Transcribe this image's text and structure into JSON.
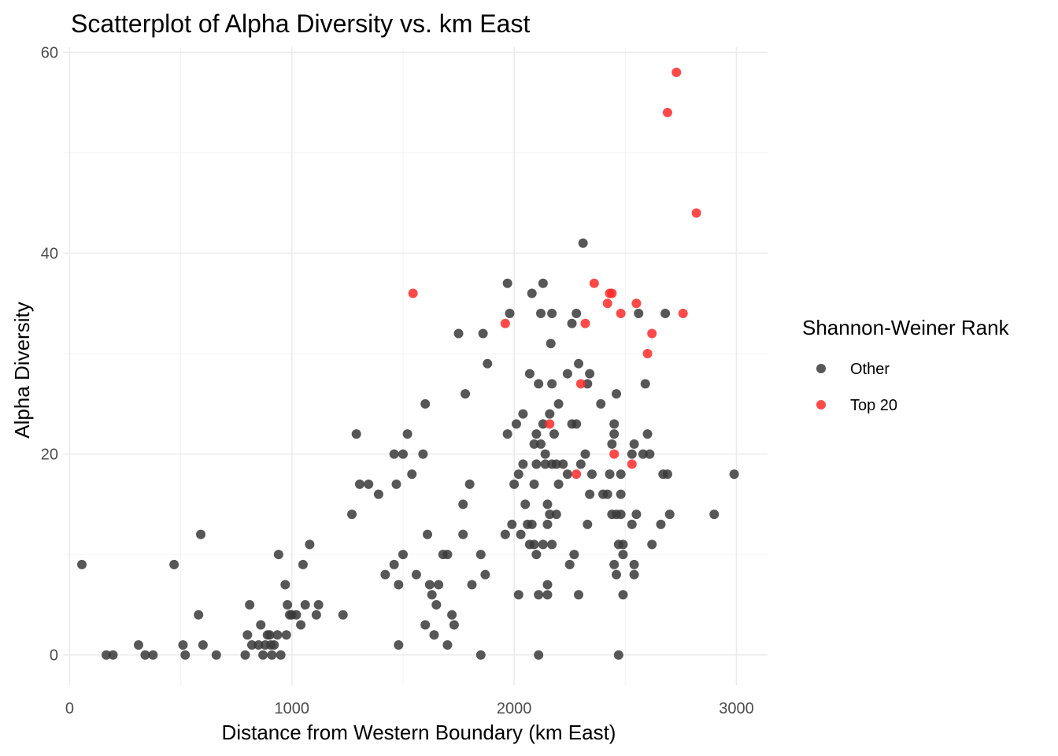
{
  "chart_data": {
    "type": "scatter",
    "title": "Scatterplot of Alpha Diversity vs. km East",
    "xlabel": "Distance from Western Boundary (km East)",
    "ylabel": "Alpha Diversity",
    "xlim": [
      -30,
      3140
    ],
    "ylim": [
      -3,
      60.5
    ],
    "x_ticks": [
      0,
      1000,
      2000,
      3000
    ],
    "y_ticks": [
      0,
      20,
      40,
      60
    ],
    "x_tick_labels": [
      "0",
      "1000",
      "2000",
      "3000"
    ],
    "y_tick_labels": [
      "0",
      "20",
      "40",
      "60"
    ],
    "grid": true,
    "legend": {
      "title": "Shannon-Weiner Rank",
      "position": "right",
      "entries": [
        "Other",
        "Top 20"
      ]
    },
    "colors": {
      "Other": "#3a3a3a",
      "Top 20": "#ff2a2a"
    },
    "series": [
      {
        "name": "Other",
        "points": [
          [
            55,
            9
          ],
          [
            165,
            0
          ],
          [
            195,
            0
          ],
          [
            310,
            1
          ],
          [
            340,
            0
          ],
          [
            375,
            0
          ],
          [
            470,
            9
          ],
          [
            510,
            1
          ],
          [
            520,
            0
          ],
          [
            580,
            4
          ],
          [
            590,
            12
          ],
          [
            600,
            1
          ],
          [
            660,
            0
          ],
          [
            790,
            0
          ],
          [
            800,
            2
          ],
          [
            810,
            5
          ],
          [
            820,
            1
          ],
          [
            850,
            1
          ],
          [
            860,
            3
          ],
          [
            870,
            0
          ],
          [
            880,
            1
          ],
          [
            890,
            2
          ],
          [
            900,
            2
          ],
          [
            905,
            1
          ],
          [
            910,
            0
          ],
          [
            920,
            1
          ],
          [
            935,
            2
          ],
          [
            940,
            10
          ],
          [
            950,
            0
          ],
          [
            970,
            7
          ],
          [
            975,
            2
          ],
          [
            980,
            5
          ],
          [
            990,
            4
          ],
          [
            1000,
            4
          ],
          [
            1020,
            4
          ],
          [
            1040,
            3
          ],
          [
            1050,
            9
          ],
          [
            1060,
            5
          ],
          [
            1080,
            11
          ],
          [
            1110,
            4
          ],
          [
            1120,
            5
          ],
          [
            1230,
            4
          ],
          [
            1270,
            14
          ],
          [
            1290,
            22
          ],
          [
            1305,
            17
          ],
          [
            1345,
            17
          ],
          [
            1390,
            16
          ],
          [
            1420,
            8
          ],
          [
            1460,
            9
          ],
          [
            1460,
            20
          ],
          [
            1470,
            17
          ],
          [
            1480,
            7
          ],
          [
            1480,
            1
          ],
          [
            1500,
            10
          ],
          [
            1500,
            20
          ],
          [
            1520,
            22
          ],
          [
            1540,
            18
          ],
          [
            1560,
            8
          ],
          [
            1590,
            20
          ],
          [
            1600,
            25
          ],
          [
            1600,
            3
          ],
          [
            1610,
            12
          ],
          [
            1620,
            7
          ],
          [
            1630,
            6
          ],
          [
            1640,
            2
          ],
          [
            1650,
            5
          ],
          [
            1660,
            7
          ],
          [
            1680,
            10
          ],
          [
            1700,
            1
          ],
          [
            1700,
            10
          ],
          [
            1720,
            4
          ],
          [
            1730,
            3
          ],
          [
            1750,
            32
          ],
          [
            1770,
            12
          ],
          [
            1770,
            15
          ],
          [
            1780,
            26
          ],
          [
            1800,
            17
          ],
          [
            1810,
            7
          ],
          [
            1850,
            10
          ],
          [
            1850,
            0
          ],
          [
            1860,
            32
          ],
          [
            1870,
            8
          ],
          [
            1880,
            29
          ],
          [
            1960,
            12
          ],
          [
            1970,
            37
          ],
          [
            1970,
            22
          ],
          [
            1980,
            34
          ],
          [
            1990,
            13
          ],
          [
            2000,
            17
          ],
          [
            2010,
            23
          ],
          [
            2020,
            6
          ],
          [
            2020,
            18
          ],
          [
            2030,
            12
          ],
          [
            2040,
            24
          ],
          [
            2040,
            19
          ],
          [
            2050,
            15
          ],
          [
            2060,
            13
          ],
          [
            2070,
            28
          ],
          [
            2070,
            11
          ],
          [
            2080,
            36
          ],
          [
            2080,
            13
          ],
          [
            2090,
            17
          ],
          [
            2090,
            21
          ],
          [
            2090,
            11
          ],
          [
            2100,
            22
          ],
          [
            2100,
            10
          ],
          [
            2100,
            19
          ],
          [
            2110,
            27
          ],
          [
            2110,
            0
          ],
          [
            2110,
            6
          ],
          [
            2120,
            34
          ],
          [
            2120,
            21
          ],
          [
            2130,
            37
          ],
          [
            2130,
            11
          ],
          [
            2130,
            23
          ],
          [
            2140,
            20
          ],
          [
            2140,
            19
          ],
          [
            2150,
            15
          ],
          [
            2150,
            7
          ],
          [
            2150,
            6
          ],
          [
            2150,
            13
          ],
          [
            2160,
            14
          ],
          [
            2160,
            24
          ],
          [
            2165,
            31
          ],
          [
            2170,
            34
          ],
          [
            2170,
            27
          ],
          [
            2170,
            19
          ],
          [
            2170,
            11
          ],
          [
            2180,
            22
          ],
          [
            2190,
            14
          ],
          [
            2190,
            19
          ],
          [
            2200,
            25
          ],
          [
            2200,
            17
          ],
          [
            2220,
            19
          ],
          [
            2240,
            28
          ],
          [
            2240,
            18
          ],
          [
            2250,
            9
          ],
          [
            2260,
            33
          ],
          [
            2260,
            23
          ],
          [
            2270,
            10
          ],
          [
            2280,
            23
          ],
          [
            2280,
            34
          ],
          [
            2290,
            6
          ],
          [
            2290,
            29
          ],
          [
            2300,
            19
          ],
          [
            2310,
            41
          ],
          [
            2320,
            20
          ],
          [
            2330,
            27
          ],
          [
            2330,
            13
          ],
          [
            2340,
            16
          ],
          [
            2340,
            28
          ],
          [
            2350,
            18
          ],
          [
            2390,
            25
          ],
          [
            2400,
            16
          ],
          [
            2420,
            16
          ],
          [
            2430,
            18
          ],
          [
            2440,
            14
          ],
          [
            2440,
            21
          ],
          [
            2450,
            23
          ],
          [
            2450,
            22
          ],
          [
            2450,
            9
          ],
          [
            2460,
            26
          ],
          [
            2460,
            14
          ],
          [
            2460,
            8
          ],
          [
            2470,
            0
          ],
          [
            2470,
            11
          ],
          [
            2480,
            16
          ],
          [
            2480,
            14
          ],
          [
            2480,
            18
          ],
          [
            2490,
            6
          ],
          [
            2490,
            11
          ],
          [
            2490,
            10
          ],
          [
            2530,
            20
          ],
          [
            2530,
            13
          ],
          [
            2540,
            9
          ],
          [
            2540,
            8
          ],
          [
            2540,
            21
          ],
          [
            2550,
            14
          ],
          [
            2560,
            34
          ],
          [
            2580,
            20
          ],
          [
            2590,
            27
          ],
          [
            2600,
            22
          ],
          [
            2610,
            20
          ],
          [
            2620,
            11
          ],
          [
            2660,
            13
          ],
          [
            2670,
            18
          ],
          [
            2680,
            34
          ],
          [
            2690,
            18
          ],
          [
            2700,
            14
          ],
          [
            2900,
            14
          ],
          [
            2990,
            18
          ]
        ]
      },
      {
        "name": "Top 20",
        "points": [
          [
            1545,
            36
          ],
          [
            1960,
            33
          ],
          [
            2160,
            23
          ],
          [
            2280,
            18
          ],
          [
            2300,
            27
          ],
          [
            2320,
            33
          ],
          [
            2360,
            37
          ],
          [
            2420,
            35
          ],
          [
            2430,
            36
          ],
          [
            2440,
            36
          ],
          [
            2450,
            20
          ],
          [
            2480,
            34
          ],
          [
            2530,
            19
          ],
          [
            2550,
            35
          ],
          [
            2600,
            30
          ],
          [
            2620,
            32
          ],
          [
            2690,
            54
          ],
          [
            2730,
            58
          ],
          [
            2760,
            34
          ],
          [
            2820,
            44
          ]
        ]
      }
    ]
  }
}
